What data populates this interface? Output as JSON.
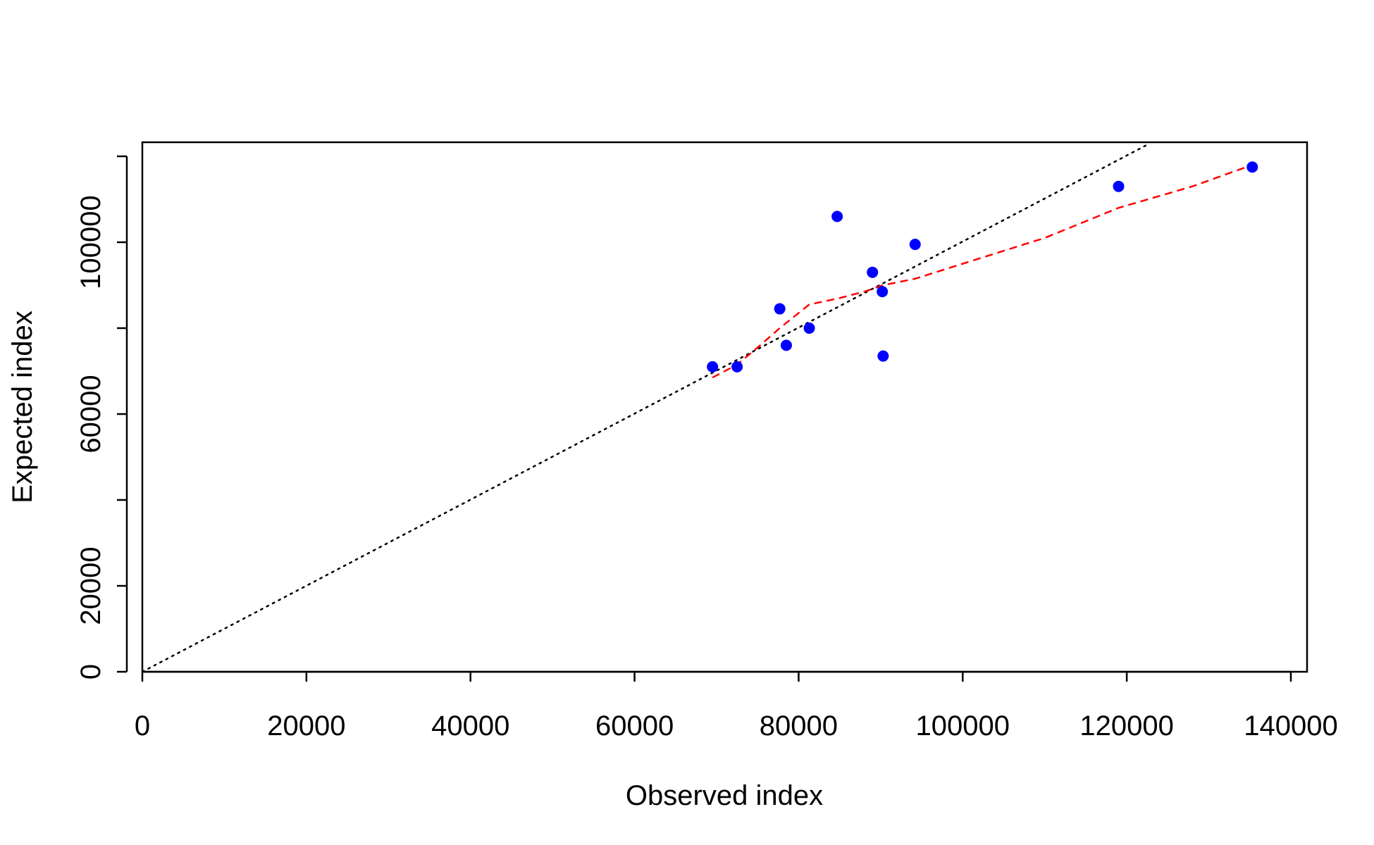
{
  "chart_data": {
    "type": "scatter",
    "title": "",
    "xlabel": "Observed index",
    "ylabel": "Expected index",
    "xlim": [
      0,
      140000
    ],
    "ylim": [
      0,
      120000
    ],
    "x_ticks": [
      0,
      20000,
      40000,
      60000,
      80000,
      100000,
      120000,
      140000
    ],
    "x_tick_labels": [
      "0",
      "20000",
      "40000",
      "60000",
      "80000",
      "100000",
      "120000",
      "140000"
    ],
    "y_ticks": [
      0,
      20000,
      40000,
      60000,
      80000,
      100000,
      120000
    ],
    "y_tick_labels": [
      "0",
      "20000",
      "",
      "60000",
      "",
      "100000",
      ""
    ],
    "grid": false,
    "points": {
      "color": "#0000ff",
      "x": [
        69500,
        72500,
        77700,
        78500,
        81300,
        84700,
        89000,
        90200,
        90300,
        94200,
        119000,
        135300
      ],
      "y": [
        71000,
        71000,
        84500,
        76000,
        80000,
        106000,
        93000,
        88500,
        73500,
        99500,
        113000,
        117500
      ]
    },
    "reference_line": {
      "style": "dotted",
      "color": "#000000",
      "x": [
        0,
        122800
      ],
      "y": [
        0,
        123000
      ]
    },
    "smooth_line": {
      "style": "dashed",
      "color": "#ff0000",
      "x": [
        69500,
        72500,
        75000,
        77700,
        79000,
        81300,
        85000,
        88000,
        90300,
        94200,
        100000,
        110000,
        119000,
        128000,
        135300
      ],
      "y": [
        68500,
        71500,
        75500,
        80000,
        82000,
        85500,
        87000,
        88500,
        90000,
        91500,
        95000,
        101000,
        108000,
        113000,
        118000
      ]
    }
  }
}
